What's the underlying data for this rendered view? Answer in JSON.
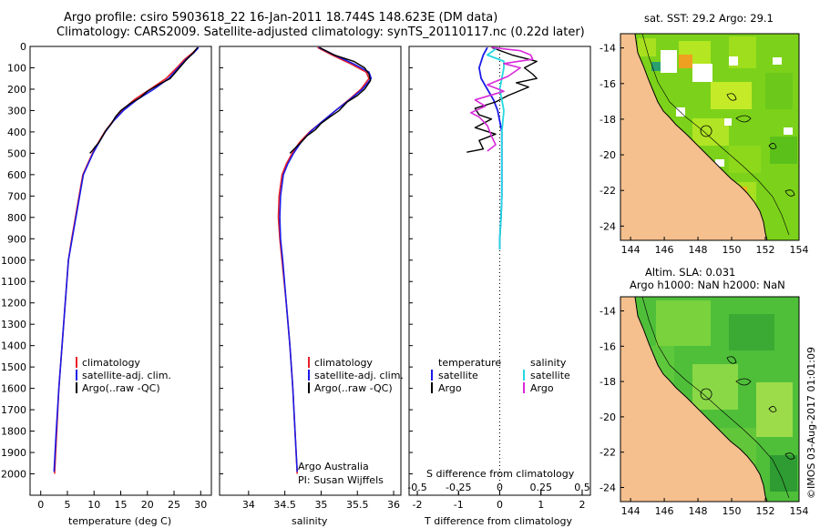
{
  "header": {
    "line1": "Argo profile: csiro 5903618_22 16-Jan-2011 18.744S 148.623E (DM data)",
    "line2": "Climatology: CARS2009. Satellite-adjusted climatology: synTS_20110117.nc (0.22d later)"
  },
  "colors": {
    "climatology": "#e8202a",
    "satellite": "#1a1ae6",
    "argo": "#000000",
    "sal_satellite": "#25d8e0",
    "sal_argo": "#d82ad8",
    "land": "#f5c08e"
  },
  "map_titles": {
    "sst": "sat. SST: 29.2  Argo: 29.1",
    "sla1": "Altim. SLA: 0.031",
    "sla2": "Argo h1000: NaN  h2000: NaN"
  },
  "side_label": "©IMOS 03-Aug-2017 01:01:09",
  "credit": {
    "line1": "Argo Australia",
    "line2": "PI: Susan Wijffels"
  },
  "legend_profiles": [
    "climatology",
    "satellite-adj. clim.",
    "Argo(..raw -QC)"
  ],
  "legend_diff": {
    "temp_header": "temperature",
    "sal_header": "salinity",
    "satellite": "satellite",
    "argo": "Argo"
  },
  "chart_data": [
    {
      "type": "line",
      "id": "temperature",
      "xlabel": "temperature (deg C)",
      "ylabel": "",
      "xlim": [
        -2,
        32
      ],
      "ylim": [
        2100,
        0
      ],
      "xticks": [
        0,
        5,
        10,
        15,
        20,
        25,
        30
      ],
      "yticks": [
        0,
        100,
        200,
        300,
        400,
        500,
        600,
        700,
        800,
        900,
        1000,
        1100,
        1200,
        1300,
        1400,
        1500,
        1600,
        1700,
        1800,
        1900,
        2000
      ],
      "series": [
        {
          "name": "climatology",
          "points": [
            [
              29.5,
              5
            ],
            [
              28.5,
              30
            ],
            [
              27,
              60
            ],
            [
              25.5,
              100
            ],
            [
              23.5,
              150
            ],
            [
              20.5,
              200
            ],
            [
              17.5,
              250
            ],
            [
              15.2,
              300
            ],
            [
              13.5,
              350
            ],
            [
              12,
              400
            ],
            [
              10.8,
              450
            ],
            [
              9.7,
              500
            ],
            [
              8.8,
              550
            ],
            [
              7.9,
              600
            ],
            [
              7.2,
              700
            ],
            [
              6.5,
              800
            ],
            [
              5.8,
              900
            ],
            [
              5.2,
              1000
            ],
            [
              4.6,
              1200
            ],
            [
              4,
              1400
            ],
            [
              3.4,
              1600
            ],
            [
              3,
              1800
            ],
            [
              2.6,
              2000
            ]
          ]
        },
        {
          "name": "satellite-adj. clim.",
          "points": [
            [
              29.6,
              5
            ],
            [
              28.7,
              30
            ],
            [
              27.3,
              60
            ],
            [
              25.8,
              100
            ],
            [
              24,
              150
            ],
            [
              21.2,
              200
            ],
            [
              18,
              250
            ],
            [
              15.5,
              300
            ],
            [
              13.6,
              350
            ],
            [
              12.1,
              400
            ],
            [
              10.9,
              450
            ],
            [
              9.8,
              500
            ],
            [
              8.9,
              550
            ],
            [
              8,
              600
            ],
            [
              7.3,
              700
            ],
            [
              6.6,
              800
            ],
            [
              5.9,
              900
            ],
            [
              5.2,
              1000
            ],
            [
              4.6,
              1200
            ],
            [
              4,
              1400
            ],
            [
              3.4,
              1600
            ],
            [
              2.9,
              1800
            ],
            [
              2.5,
              1990
            ]
          ]
        },
        {
          "name": "Argo(..raw -QC)",
          "points": [
            [
              29.4,
              5
            ],
            [
              28.6,
              30
            ],
            [
              27.4,
              60
            ],
            [
              26,
              100
            ],
            [
              24.3,
              150
            ],
            [
              22,
              180
            ],
            [
              20,
              210
            ],
            [
              18.6,
              240
            ],
            [
              16.6,
              270
            ],
            [
              15,
              300
            ],
            [
              14,
              330
            ],
            [
              13.3,
              360
            ],
            [
              12.3,
              390
            ],
            [
              11.6,
              420
            ],
            [
              10.9,
              450
            ],
            [
              10.2,
              470
            ],
            [
              9.6,
              490
            ],
            [
              9.2,
              500
            ]
          ]
        }
      ]
    },
    {
      "type": "line",
      "id": "salinity",
      "xlabel": "salinity",
      "ylabel": "",
      "xlim": [
        33.6,
        36.1
      ],
      "ylim": [
        2100,
        0
      ],
      "xticks": [
        34,
        34.5,
        35,
        35.5,
        36
      ],
      "series": [
        {
          "name": "climatology",
          "points": [
            [
              34.95,
              5
            ],
            [
              35.15,
              40
            ],
            [
              35.4,
              80
            ],
            [
              35.62,
              120
            ],
            [
              35.66,
              150
            ],
            [
              35.55,
              200
            ],
            [
              35.38,
              250
            ],
            [
              35.2,
              300
            ],
            [
              35.02,
              350
            ],
            [
              34.84,
              400
            ],
            [
              34.7,
              450
            ],
            [
              34.6,
              500
            ],
            [
              34.52,
              550
            ],
            [
              34.46,
              600
            ],
            [
              34.42,
              700
            ],
            [
              34.41,
              800
            ],
            [
              34.43,
              900
            ],
            [
              34.46,
              1000
            ],
            [
              34.52,
              1200
            ],
            [
              34.57,
              1400
            ],
            [
              34.61,
              1600
            ],
            [
              34.64,
              1800
            ],
            [
              34.67,
              2000
            ]
          ]
        },
        {
          "name": "satellite-adj. clim.",
          "points": [
            [
              34.97,
              5
            ],
            [
              35.18,
              40
            ],
            [
              35.44,
              80
            ],
            [
              35.66,
              120
            ],
            [
              35.69,
              150
            ],
            [
              35.57,
              200
            ],
            [
              35.39,
              250
            ],
            [
              35.2,
              300
            ],
            [
              35.02,
              350
            ],
            [
              34.85,
              400
            ],
            [
              34.72,
              450
            ],
            [
              34.62,
              500
            ],
            [
              34.54,
              550
            ],
            [
              34.48,
              600
            ],
            [
              34.44,
              700
            ],
            [
              34.43,
              800
            ],
            [
              34.44,
              900
            ],
            [
              34.47,
              1000
            ],
            [
              34.52,
              1200
            ],
            [
              34.57,
              1400
            ],
            [
              34.61,
              1600
            ],
            [
              34.64,
              1800
            ],
            [
              34.67,
              1990
            ]
          ]
        },
        {
          "name": "Argo(..raw -QC)",
          "points": [
            [
              34.98,
              5
            ],
            [
              35.18,
              40
            ],
            [
              35.45,
              70
            ],
            [
              35.6,
              100
            ],
            [
              35.66,
              130
            ],
            [
              35.68,
              160
            ],
            [
              35.6,
              200
            ],
            [
              35.5,
              230
            ],
            [
              35.36,
              260
            ],
            [
              35.25,
              300
            ],
            [
              35.12,
              330
            ],
            [
              35.0,
              360
            ],
            [
              34.92,
              390
            ],
            [
              34.8,
              420
            ],
            [
              34.72,
              450
            ],
            [
              34.66,
              470
            ],
            [
              34.6,
              490
            ],
            [
              34.57,
              500
            ]
          ]
        }
      ]
    },
    {
      "type": "line",
      "id": "difference",
      "xlabel": "T difference from climatology",
      "xlabel_top": "S difference from climatology",
      "xlim": [
        -2.2,
        2.2
      ],
      "ylim": [
        2100,
        0
      ],
      "xticks": [
        -2,
        -1,
        0,
        1,
        2
      ],
      "xticks_top": [
        -0.5,
        -0.25,
        0,
        0.25,
        0.5
      ],
      "top_axis_scale": 4,
      "series": [
        {
          "name": "temperature satellite",
          "points": [
            [
              -0.3,
              5
            ],
            [
              -0.4,
              40
            ],
            [
              -0.5,
              100
            ],
            [
              -0.45,
              150
            ],
            [
              -0.3,
              200
            ],
            [
              -0.15,
              250
            ],
            [
              -0.05,
              300
            ],
            [
              0.05,
              400
            ],
            [
              0.05,
              500
            ],
            [
              0.05,
              600
            ],
            [
              0.05,
              700
            ],
            [
              0.03,
              800
            ],
            [
              0.0,
              900
            ],
            [
              0.0,
              950
            ]
          ]
        },
        {
          "name": "temperature Argo",
          "points": [
            [
              -0.2,
              5
            ],
            [
              0.3,
              40
            ],
            [
              0.9,
              70
            ],
            [
              0.6,
              100
            ],
            [
              0.8,
              130
            ],
            [
              0.9,
              150
            ],
            [
              0.4,
              170
            ],
            [
              0.7,
              190
            ],
            [
              0.2,
              230
            ],
            [
              -0.1,
              260
            ],
            [
              -0.6,
              290
            ],
            [
              -0.5,
              320
            ],
            [
              -0.2,
              340
            ],
            [
              -0.6,
              380
            ],
            [
              -0.1,
              410
            ],
            [
              -0.5,
              440
            ],
            [
              -0.4,
              480
            ],
            [
              -0.8,
              495
            ]
          ]
        },
        {
          "name": "salinity satellite",
          "points": [
            [
              -0.05,
              5
            ],
            [
              -0.3,
              40
            ],
            [
              0.1,
              70
            ],
            [
              0.1,
              100
            ],
            [
              0.05,
              150
            ],
            [
              0.0,
              200
            ],
            [
              0.05,
              250
            ],
            [
              0.1,
              300
            ],
            [
              0.05,
              400
            ],
            [
              0.05,
              500
            ],
            [
              0.05,
              600
            ],
            [
              0.05,
              700
            ],
            [
              0.03,
              800
            ],
            [
              0.0,
              900
            ],
            [
              0.0,
              950
            ]
          ]
        },
        {
          "name": "salinity Argo",
          "points": [
            [
              -0.2,
              5
            ],
            [
              0.5,
              20
            ],
            [
              0.75,
              40
            ],
            [
              0.8,
              60
            ],
            [
              0.1,
              80
            ],
            [
              0.5,
              100
            ],
            [
              0.2,
              140
            ],
            [
              -0.3,
              180
            ],
            [
              0.1,
              210
            ],
            [
              -0.6,
              250
            ],
            [
              -0.35,
              280
            ],
            [
              -0.7,
              310
            ],
            [
              -0.5,
              330
            ],
            [
              -0.3,
              370
            ],
            [
              -0.2,
              420
            ],
            [
              -0.1,
              460
            ],
            [
              -0.3,
              490
            ]
          ]
        }
      ]
    }
  ],
  "maps": {
    "lon_ticks": [
      144,
      146,
      148,
      150,
      152,
      154
    ],
    "lat_ticks": [
      -14,
      -16,
      -18,
      -20,
      -22,
      -24
    ]
  }
}
